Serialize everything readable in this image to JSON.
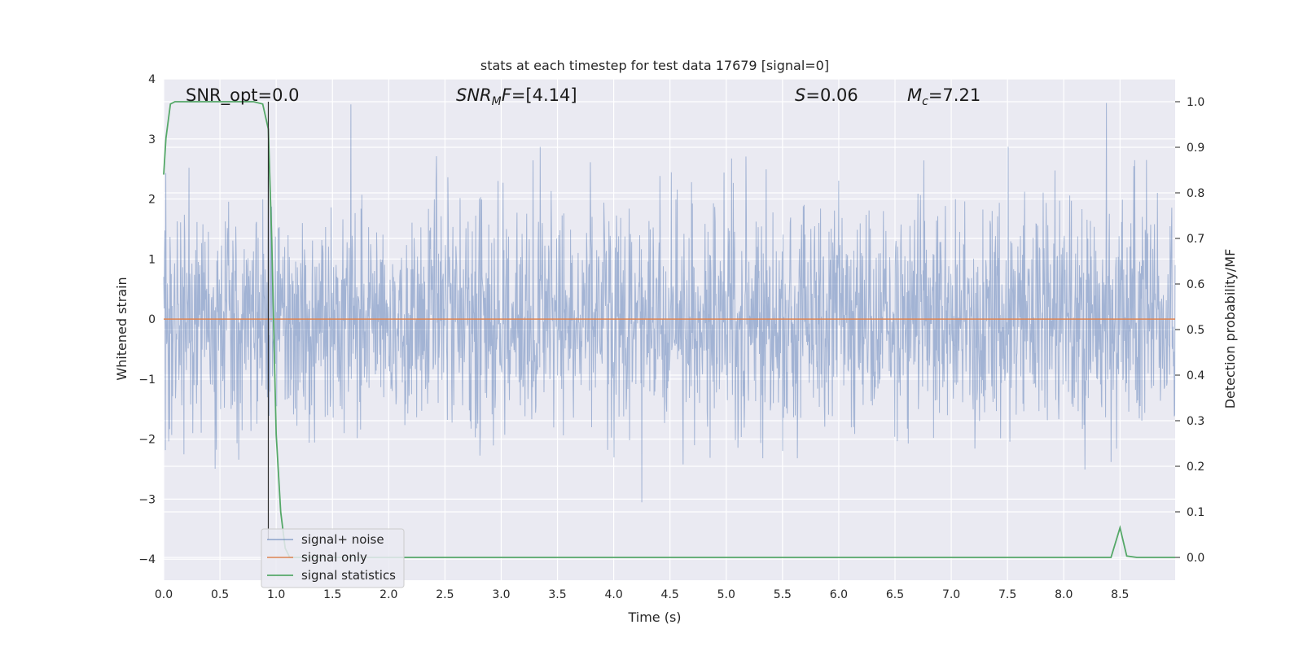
{
  "chart_data": {
    "type": "line",
    "title": "stats at each timestep for test data 17679 [signal=0]",
    "xlabel": "Time (s)",
    "ylabel_left": "Whitened strain",
    "ylabel_right": "Detection probability/MF",
    "xlim": [
      0,
      8.99
    ],
    "ylim_left": [
      -4.35,
      4.0
    ],
    "ylim_right": [
      -0.05,
      1.05
    ],
    "x_ticks": [
      "0.0",
      "0.5",
      "1.0",
      "1.5",
      "2.0",
      "2.5",
      "3.0",
      "3.5",
      "4.0",
      "4.5",
      "5.0",
      "5.5",
      "6.0",
      "6.5",
      "7.0",
      "7.5",
      "8.0",
      "8.5"
    ],
    "y_ticks_left": [
      "−4",
      "−3",
      "−2",
      "−1",
      "0",
      "1",
      "2",
      "3",
      "4"
    ],
    "y_ticks_right": [
      "0.0",
      "0.1",
      "0.2",
      "0.3",
      "0.4",
      "0.5",
      "0.6",
      "0.7",
      "0.8",
      "0.9",
      "1.0"
    ],
    "grid": true,
    "legend_placement": "lower-left",
    "annotations": {
      "snr_opt": "SNR_opt=0.0",
      "snr_mf_sym": "SNR",
      "snr_mf_sub": "M",
      "snr_mf_sym2": "F",
      "snr_mf_val": "=[4.14]",
      "s_sym": "S",
      "s_val": "=0.06",
      "mc_sym": "M",
      "mc_sub": "c",
      "mc_val": "=7.21"
    },
    "vertical_line_x": 0.93,
    "series": [
      {
        "name": "signal+ noise",
        "axis": "left",
        "description_values": "whitened strain noise, roughly gaussian, amplitude mostly within [-2, 2] with peaks to about ±3.6",
        "color": "#4c72b0"
      },
      {
        "name": "signal only",
        "axis": "left",
        "x": [
          0,
          8.99
        ],
        "y": [
          0,
          0
        ],
        "color": "#dd8452"
      },
      {
        "name": "signal statistics",
        "axis": "right",
        "color": "#55a868",
        "x": [
          0.0,
          0.02,
          0.06,
          0.1,
          0.2,
          0.3,
          0.4,
          0.5,
          0.6,
          0.7,
          0.8,
          0.88,
          0.93,
          0.96,
          1.0,
          1.04,
          1.08,
          1.12,
          1.2,
          1.5,
          2.0,
          3.0,
          4.0,
          5.0,
          6.0,
          7.0,
          8.0,
          8.35,
          8.42,
          8.5,
          8.56,
          8.65,
          8.99
        ],
        "y": [
          0.84,
          0.92,
          0.995,
          1.0,
          1.0,
          1.0,
          1.0,
          1.0,
          1.0,
          1.0,
          1.0,
          0.995,
          0.94,
          0.7,
          0.27,
          0.1,
          0.02,
          0.0,
          0.0,
          0.0,
          0.0,
          0.0,
          0.0,
          0.0,
          0.0,
          0.0,
          0.0,
          0.0,
          0.0,
          0.065,
          0.003,
          0.0,
          0.0
        ]
      }
    ],
    "colors": {
      "axes_bg": "#eaeaf2",
      "grid": "#ffffff",
      "noise": "#4c72b0",
      "signal": "#dd8452",
      "stat": "#55a868",
      "vline": "#2b2b2b"
    }
  }
}
